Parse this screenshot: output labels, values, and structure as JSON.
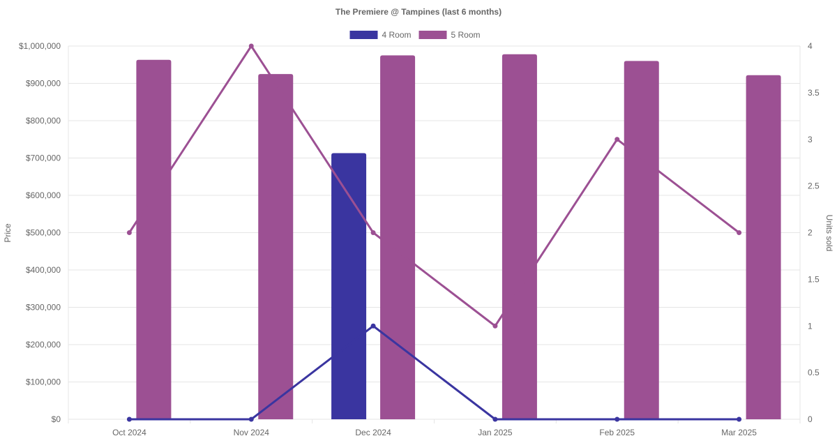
{
  "chart_data": {
    "type": "bar",
    "title": "The Premiere @ Tampines (last 6 months)",
    "categories": [
      "Oct 2024",
      "Nov 2024",
      "Dec 2024",
      "Jan 2025",
      "Feb 2025",
      "Mar 2025"
    ],
    "y_left": {
      "label": "Price",
      "ylim": [
        0,
        1000000
      ],
      "ticks": [
        "$0",
        "$100,000",
        "$200,000",
        "$300,000",
        "$400,000",
        "$500,000",
        "$600,000",
        "$700,000",
        "$800,000",
        "$900,000",
        "$1,000,000"
      ]
    },
    "y_right": {
      "label": "Units sold",
      "ylim": [
        0,
        4
      ],
      "ticks": [
        "0",
        "0.5",
        "1",
        "1.5",
        "2",
        "2.5",
        "3",
        "3.5",
        "4"
      ]
    },
    "legend": {
      "position": "top",
      "items": [
        {
          "name": "4 Room",
          "color": "#3a35a0"
        },
        {
          "name": "5 Room",
          "color": "#9c5093"
        }
      ]
    },
    "series": [
      {
        "name": "4 Room",
        "color": "#3a35a0",
        "price": [
          null,
          null,
          713000,
          null,
          null,
          null
        ],
        "units": [
          0,
          0,
          1,
          0,
          0,
          0
        ]
      },
      {
        "name": "5 Room",
        "color": "#9c5093",
        "price": [
          963000,
          925000,
          975000,
          978000,
          960000,
          922000
        ],
        "units": [
          2,
          4,
          2,
          1,
          3,
          2
        ]
      }
    ],
    "grid": true
  }
}
